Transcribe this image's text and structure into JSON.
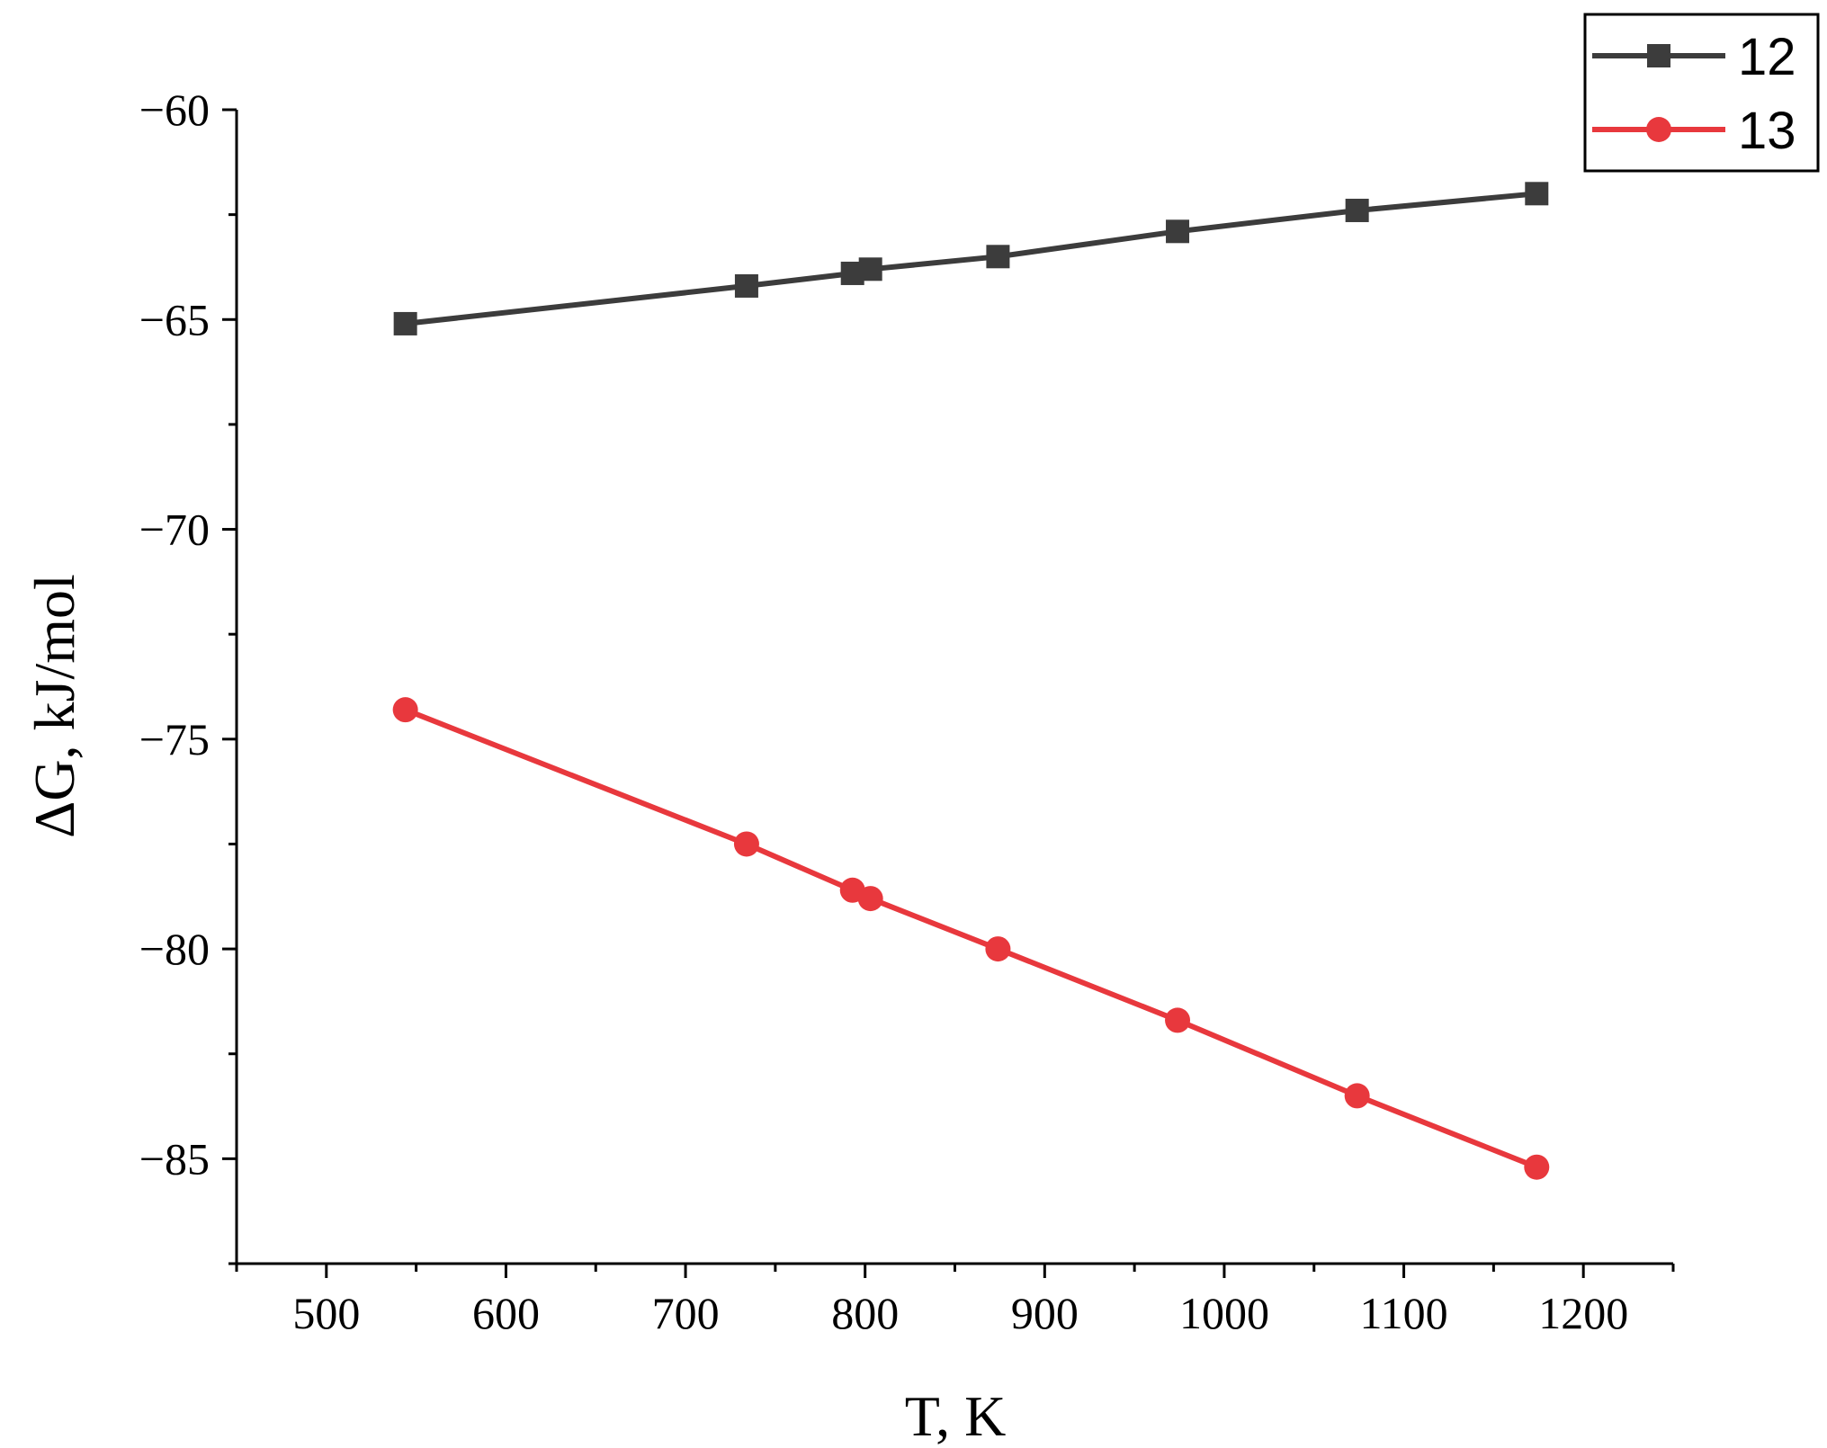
{
  "chart_data": {
    "type": "line",
    "xlabel": "T, K",
    "ylabel": "ΔG, kJ/mol",
    "xlim": [
      450,
      1250
    ],
    "ylim": [
      -87.5,
      -60
    ],
    "x_ticks": [
      500,
      600,
      700,
      800,
      900,
      1000,
      1100,
      1200
    ],
    "x_tick_labels": [
      "500",
      "600",
      "700",
      "800",
      "900",
      "1000",
      "1100",
      "1200"
    ],
    "y_ticks": [
      -60,
      -65,
      -70,
      -75,
      -80,
      -85
    ],
    "y_tick_labels": [
      "−60",
      "−65",
      "−70",
      "−75",
      "−80",
      "−85"
    ],
    "grid": false,
    "legend_position": "top-right",
    "series": [
      {
        "name": "12",
        "color": "#3c3c3c",
        "marker": "square",
        "x": [
          544,
          734,
          793,
          803,
          874,
          974,
          1074,
          1174
        ],
        "y": [
          -65.1,
          -64.2,
          -63.9,
          -63.8,
          -63.5,
          -62.9,
          -62.4,
          -62.0
        ]
      },
      {
        "name": "13",
        "color": "#e8383d",
        "marker": "circle",
        "x": [
          544,
          734,
          793,
          803,
          874,
          974,
          1074,
          1174
        ],
        "y": [
          -74.3,
          -77.5,
          -78.6,
          -78.8,
          -80.0,
          -81.7,
          -83.5,
          -85.2
        ]
      }
    ]
  }
}
